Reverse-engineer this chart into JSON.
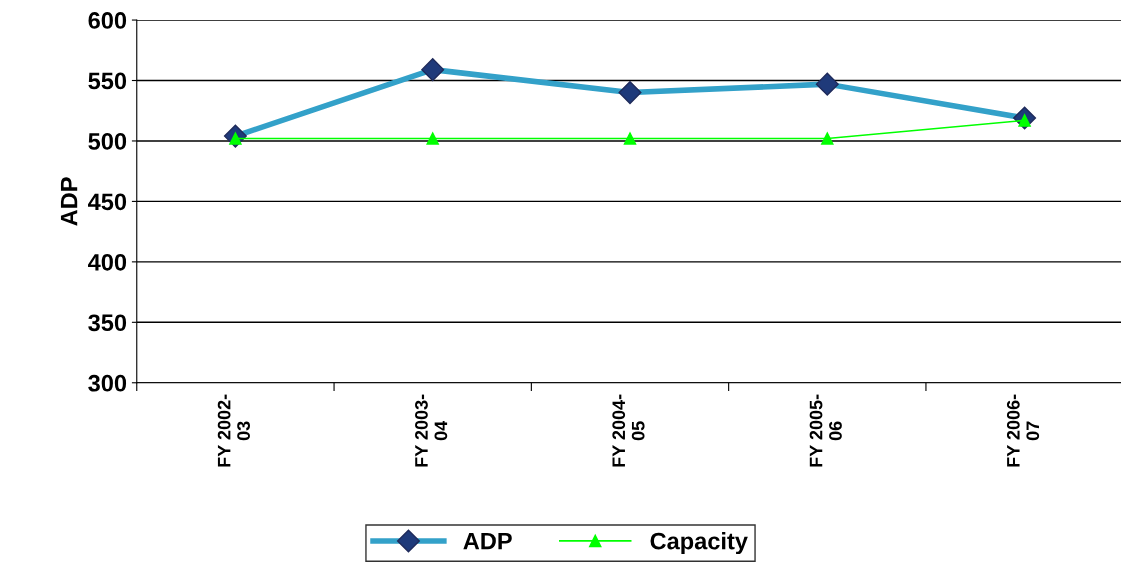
{
  "chart_data": {
    "type": "line",
    "ylabel": "ADP",
    "categories": [
      "FY 2002-\n03",
      "FY 2003-\n04",
      "FY 2004-\n05",
      "FY 2005-\n06",
      "FY 2006-\n07"
    ],
    "series": [
      {
        "name": "ADP",
        "color": "#33a1c9",
        "marker": "diamond",
        "values": [
          504,
          559,
          540,
          547,
          519
        ]
      },
      {
        "name": "Capacity",
        "color": "#00ff00",
        "marker": "triangle",
        "values": [
          502,
          502,
          502,
          502,
          517
        ]
      }
    ],
    "ylim": [
      300,
      600
    ],
    "yticks": [
      300,
      350,
      400,
      450,
      500,
      550,
      600
    ],
    "grid": "y",
    "legend": "bottom"
  }
}
